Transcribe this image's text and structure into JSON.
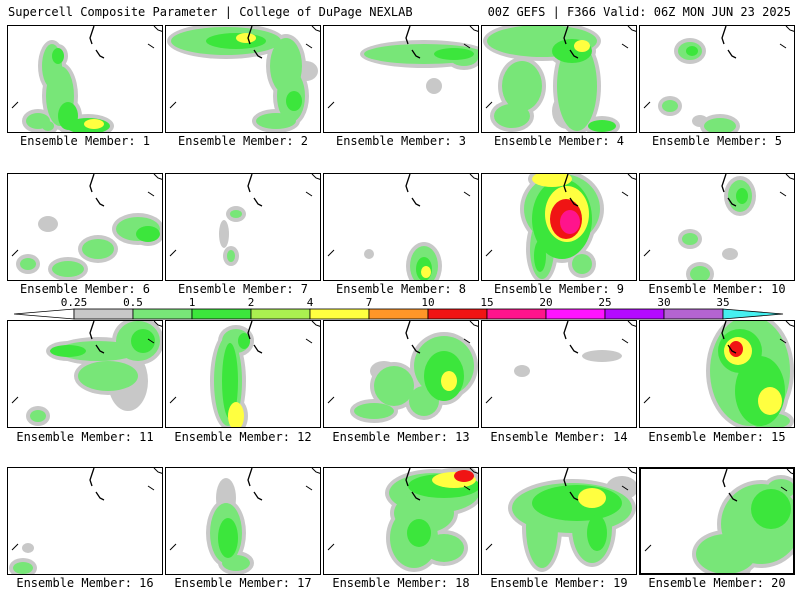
{
  "header": {
    "title_left": "Supercell Composite Parameter | College of DuPage NEXLAB",
    "title_right": "00Z GEFS | F366 Valid: 06Z MON JUN 23 2025"
  },
  "colorbar": {
    "ticks": [
      "0.25",
      "0.5",
      "1",
      "2",
      "4",
      "7",
      "10",
      "15",
      "20",
      "25",
      "30",
      "35"
    ],
    "colors": [
      "#c8c8c8",
      "#78e678",
      "#3ce63c",
      "#aaf050",
      "#ffff40",
      "#ff9628",
      "#f01414",
      "#ff148c",
      "#ff14ff",
      "#b40aff",
      "#b464d2",
      "#46f0f0"
    ],
    "over_color": "#46f0f0"
  },
  "members": [
    {
      "label": "Ensemble Member: 1",
      "number": 1,
      "selected": false
    },
    {
      "label": "Ensemble Member: 2",
      "number": 2,
      "selected": false
    },
    {
      "label": "Ensemble Member: 3",
      "number": 3,
      "selected": false
    },
    {
      "label": "Ensemble Member: 4",
      "number": 4,
      "selected": false
    },
    {
      "label": "Ensemble Member: 5",
      "number": 5,
      "selected": false
    },
    {
      "label": "Ensemble Member: 6",
      "number": 6,
      "selected": false
    },
    {
      "label": "Ensemble Member: 7",
      "number": 7,
      "selected": false
    },
    {
      "label": "Ensemble Member: 8",
      "number": 8,
      "selected": false
    },
    {
      "label": "Ensemble Member: 9",
      "number": 9,
      "selected": false
    },
    {
      "label": "Ensemble Member: 10",
      "number": 10,
      "selected": false
    },
    {
      "label": "Ensemble Member: 11",
      "number": 11,
      "selected": false
    },
    {
      "label": "Ensemble Member: 12",
      "number": 12,
      "selected": false
    },
    {
      "label": "Ensemble Member: 13",
      "number": 13,
      "selected": false
    },
    {
      "label": "Ensemble Member: 14",
      "number": 14,
      "selected": false
    },
    {
      "label": "Ensemble Member: 15",
      "number": 15,
      "selected": false
    },
    {
      "label": "Ensemble Member: 16",
      "number": 16,
      "selected": false
    },
    {
      "label": "Ensemble Member: 17",
      "number": 17,
      "selected": false
    },
    {
      "label": "Ensemble Member: 18",
      "number": 18,
      "selected": false
    },
    {
      "label": "Ensemble Member: 19",
      "number": 19,
      "selected": false
    },
    {
      "label": "Ensemble Member: 20",
      "number": 20,
      "selected": true
    }
  ]
}
